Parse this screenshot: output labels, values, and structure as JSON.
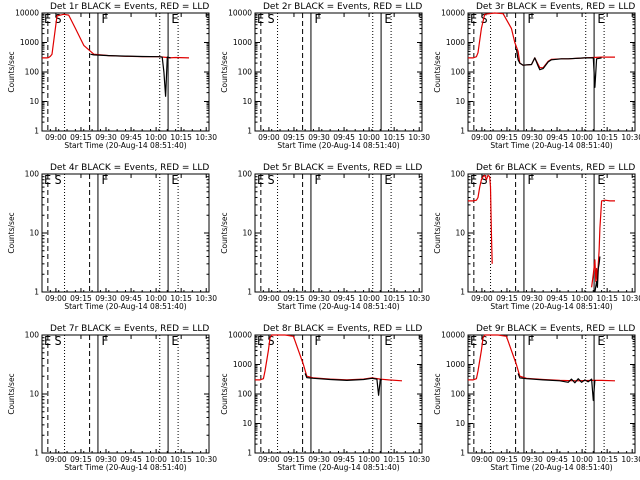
{
  "colors": {
    "events": "#000000",
    "lld": "#e00000",
    "axes": "#000000"
  },
  "chart_data": [
    {
      "type": "line",
      "title": "Det 1r BLACK = Events, RED = LLD",
      "xlabel": "Start Time (20-Aug-14 08:51:40)",
      "ylabel": "Counts/sec",
      "x_tick_labels": [
        "09:00",
        "09:15",
        "09:30",
        "09:45",
        "10:00",
        "10:15",
        "10:30"
      ],
      "y_tick_labels": [
        "1",
        "10",
        "100",
        "1000",
        "10000"
      ],
      "yscale": "log",
      "markers": [
        "E",
        "S",
        "F",
        "E"
      ],
      "series": [
        {
          "color": "#e00000",
          "x": [
            0,
            3,
            4,
            5,
            6,
            9,
            13,
            16,
            20,
            25,
            31,
            40,
            50,
            60,
            70,
            75,
            76,
            80,
            88
          ],
          "y": [
            300,
            300,
            310,
            340,
            400,
            8000,
            9000,
            8500,
            3000,
            800,
            400,
            360,
            340,
            330,
            330,
            310,
            300,
            310,
            300
          ]
        },
        {
          "color": "#000000",
          "x": [
            29,
            31,
            40,
            50,
            60,
            70,
            72,
            73,
            74,
            75,
            76,
            77
          ],
          "y": [
            400,
            380,
            360,
            345,
            335,
            330,
            320,
            100,
            15,
            320,
            310,
            300
          ]
        }
      ]
    },
    {
      "type": "line",
      "title": "Det 2r BLACK = Events, RED = LLD",
      "xlabel": "Start Time (20-Aug-14 08:51:40)",
      "ylabel": "Counts/sec",
      "x_tick_labels": [
        "09:00",
        "09:15",
        "09:30",
        "09:45",
        "10:00",
        "10:15",
        "10:30"
      ],
      "y_tick_labels": [
        "1",
        "10",
        "100",
        "1000",
        "10000"
      ],
      "yscale": "log",
      "markers": [
        "E",
        "S",
        "F",
        "E"
      ],
      "series": []
    },
    {
      "type": "line",
      "title": "Det 3r BLACK = Events, RED = LLD",
      "xlabel": "Start Time (20-Aug-14 08:51:40)",
      "ylabel": "Counts/sec",
      "x_tick_labels": [
        "09:00",
        "09:15",
        "09:30",
        "09:45",
        "10:00",
        "10:15",
        "10:30"
      ],
      "y_tick_labels": [
        "1",
        "10",
        "100",
        "1000",
        "10000"
      ],
      "yscale": "log",
      "markers": [
        "E",
        "S",
        "F",
        "E"
      ],
      "series": [
        {
          "color": "#e00000",
          "x": [
            0,
            3,
            5,
            6,
            8,
            10,
            16,
            21,
            26,
            28,
            30,
            31,
            33,
            38,
            40,
            43,
            45,
            48,
            50,
            56,
            60,
            70,
            80,
            88
          ],
          "y": [
            300,
            300,
            330,
            450,
            3000,
            9000,
            10000,
            9500,
            3000,
            1000,
            500,
            200,
            170,
            180,
            300,
            140,
            140,
            230,
            270,
            280,
            280,
            300,
            320,
            320
          ]
        },
        {
          "color": "#000000",
          "x": [
            29,
            30,
            31,
            33,
            38,
            40,
            42,
            43,
            45,
            48,
            50,
            56,
            60,
            70,
            75,
            76,
            77,
            80
          ],
          "y": [
            600,
            260,
            200,
            170,
            180,
            300,
            160,
            120,
            130,
            220,
            260,
            280,
            280,
            300,
            300,
            30,
            280,
            300
          ]
        }
      ]
    },
    {
      "type": "line",
      "title": "Det 4r BLACK = Events, RED = LLD",
      "xlabel": "Start Time (20-Aug-14 08:51:40)",
      "ylabel": "Counts/sec",
      "x_tick_labels": [
        "09:00",
        "09:15",
        "09:30",
        "09:45",
        "10:00",
        "10:15",
        "10:30"
      ],
      "y_tick_labels": [
        "1",
        "10",
        "100"
      ],
      "yscale": "log",
      "markers": [
        "E",
        "S",
        "F",
        "E"
      ],
      "series": []
    },
    {
      "type": "line",
      "title": "Det 5r BLACK = Events, RED = LLD",
      "xlabel": "Start Time (20-Aug-14 08:51:40)",
      "ylabel": "Counts/sec",
      "x_tick_labels": [
        "09:00",
        "09:15",
        "09:30",
        "09:45",
        "10:00",
        "10:15",
        "10:30"
      ],
      "y_tick_labels": [
        "1",
        "10",
        "100"
      ],
      "yscale": "log",
      "markers": [
        "E",
        "S",
        "F",
        "E"
      ],
      "series": []
    },
    {
      "type": "line",
      "title": "Det 6r BLACK = Events, RED = LLD",
      "xlabel": "Start Time (20-Aug-14 08:51:40)",
      "ylabel": "Counts/sec",
      "x_tick_labels": [
        "09:00",
        "09:15",
        "09:30",
        "09:45",
        "10:00",
        "10:15",
        "10:30"
      ],
      "y_tick_labels": [
        "1",
        "10",
        "100"
      ],
      "yscale": "log",
      "markers": [
        "E",
        "S",
        "F",
        "E"
      ],
      "series": [
        {
          "color": "#e00000",
          "x": [
            0,
            3,
            5,
            6,
            7,
            8,
            9,
            10,
            11,
            12,
            13,
            13.5,
            14,
            14.5
          ],
          "y": [
            35,
            35,
            36,
            40,
            60,
            80,
            90,
            95,
            80,
            95,
            90,
            60,
            10,
            3
          ]
        },
        {
          "color": "#e00000",
          "x": [
            74,
            75,
            76,
            76.5,
            77,
            77.5,
            78,
            78.5,
            79,
            80,
            82,
            85,
            88
          ],
          "y": [
            1.2,
            2,
            3.5,
            1.5,
            2.5,
            1.5,
            3,
            5,
            12,
            35,
            36,
            35,
            35
          ]
        },
        {
          "color": "#000000",
          "x": [
            76,
            77,
            77.5,
            78,
            78.5,
            79
          ],
          "y": [
            1,
            1.5,
            1.2,
            2.5,
            3,
            4
          ]
        }
      ]
    },
    {
      "type": "line",
      "title": "Det 7r BLACK = Events, RED = LLD",
      "xlabel": "Start Time (20-Aug-14 08:51:40)",
      "ylabel": "Counts/sec",
      "x_tick_labels": [
        "09:00",
        "09:15",
        "09:30",
        "09:45",
        "10:00",
        "10:15",
        "10:30"
      ],
      "y_tick_labels": [
        "1",
        "10",
        "100"
      ],
      "yscale": "log",
      "markers": [
        "E",
        "S",
        "F",
        "E"
      ],
      "series": []
    },
    {
      "type": "line",
      "title": "Det 8r BLACK = Events, RED = LLD",
      "xlabel": "Start Time (20-Aug-14 08:51:40)",
      "ylabel": "Counts/sec",
      "x_tick_labels": [
        "09:00",
        "09:15",
        "09:30",
        "09:45",
        "10:00",
        "10:15",
        "10:30"
      ],
      "y_tick_labels": [
        "1",
        "10",
        "100",
        "1000",
        "10000"
      ],
      "yscale": "log",
      "markers": [
        "E",
        "S",
        "F",
        "E"
      ],
      "series": [
        {
          "color": "#e00000",
          "x": [
            0,
            3,
            5,
            6,
            8,
            9,
            10,
            12,
            18,
            23,
            26,
            29,
            31,
            35,
            45,
            55,
            65,
            70,
            75,
            80,
            88
          ],
          "y": [
            300,
            300,
            330,
            600,
            3000,
            8000,
            10000,
            10000,
            10000,
            9000,
            3000,
            1000,
            400,
            350,
            320,
            300,
            320,
            350,
            320,
            300,
            280
          ]
        },
        {
          "color": "#000000",
          "x": [
            30,
            31,
            35,
            45,
            55,
            65,
            70,
            73,
            74,
            75,
            76
          ],
          "y": [
            500,
            360,
            340,
            310,
            290,
            310,
            340,
            320,
            90,
            310,
            300
          ]
        }
      ]
    },
    {
      "type": "line",
      "title": "Det 9r BLACK = Events, RED = LLD",
      "xlabel": "Start Time (20-Aug-14 08:51:40)",
      "ylabel": "Counts/sec",
      "x_tick_labels": [
        "09:00",
        "09:15",
        "09:30",
        "09:45",
        "10:00",
        "10:15",
        "10:30"
      ],
      "y_tick_labels": [
        "1",
        "10",
        "100",
        "1000",
        "10000"
      ],
      "yscale": "log",
      "markers": [
        "E",
        "S",
        "F",
        "E"
      ],
      "series": [
        {
          "color": "#e00000",
          "x": [
            0,
            3,
            5,
            6,
            8,
            9,
            10,
            12,
            18,
            23,
            26,
            29,
            31,
            35,
            45,
            55,
            65,
            75,
            80,
            88
          ],
          "y": [
            300,
            300,
            330,
            600,
            3000,
            8000,
            10000,
            10000,
            10000,
            9000,
            3000,
            1000,
            400,
            340,
            310,
            290,
            280,
            290,
            290,
            280
          ]
        },
        {
          "color": "#000000",
          "x": [
            30,
            31,
            35,
            45,
            55,
            60,
            62,
            64,
            66,
            68,
            70,
            72,
            74,
            75,
            76
          ],
          "y": [
            500,
            350,
            330,
            300,
            280,
            250,
            320,
            240,
            330,
            250,
            300,
            260,
            320,
            60,
            300
          ]
        }
      ]
    }
  ]
}
